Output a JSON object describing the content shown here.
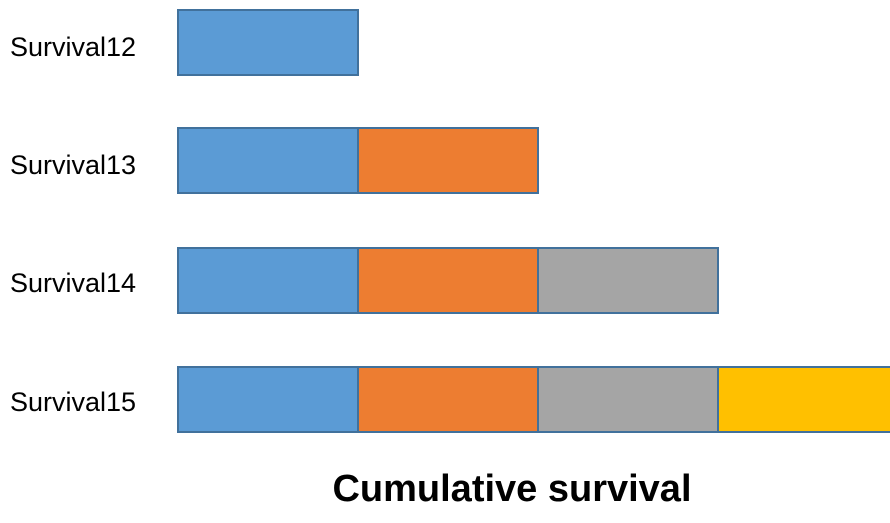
{
  "rows": [
    {
      "label": "Survival12",
      "segments": 1
    },
    {
      "label": "Survival13",
      "segments": 2
    },
    {
      "label": "Survival14",
      "segments": 3
    },
    {
      "label": "Survival15",
      "segments": 4
    }
  ],
  "segment_colors": [
    "#5b9bd5",
    "#ed7d31",
    "#a5a5a5",
    "#ffc000"
  ],
  "caption": "Cumulative survival"
}
